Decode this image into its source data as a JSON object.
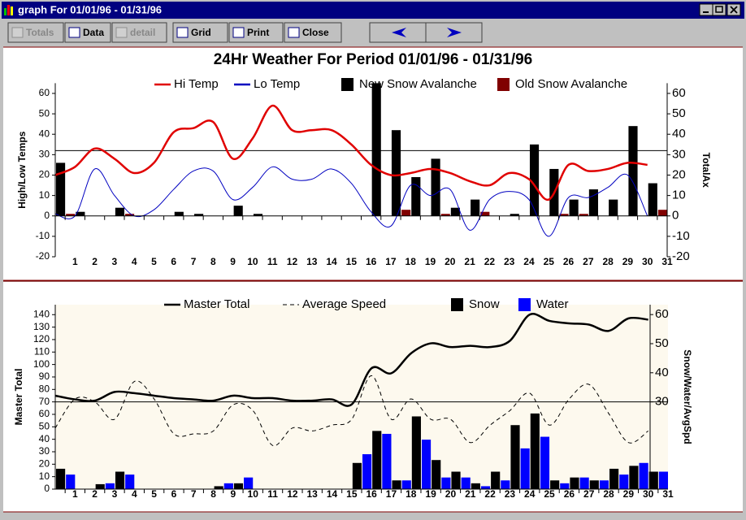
{
  "window": {
    "title": "graph For 01/01/96 - 01/31/96"
  },
  "toolbar": {
    "buttons": [
      "Totals",
      "Data",
      "detail",
      "Grid",
      "Print",
      "Close"
    ]
  },
  "chart_data": [
    {
      "type": "combo",
      "title": "24Hr Weather For Period 01/01/96 - 01/31/96",
      "y_label": "High/Low Temps",
      "y2_label": "TotalAx",
      "x": [
        0,
        1,
        2,
        3,
        4,
        5,
        6,
        7,
        8,
        9,
        10,
        11,
        12,
        13,
        14,
        15,
        16,
        17,
        18,
        19,
        20,
        21,
        22,
        23,
        24,
        25,
        26,
        27,
        28,
        29,
        30,
        31
      ],
      "xlim": [
        0,
        31
      ],
      "xticks": [
        1,
        2,
        3,
        4,
        5,
        6,
        7,
        8,
        9,
        10,
        11,
        12,
        13,
        14,
        15,
        16,
        17,
        18,
        19,
        20,
        21,
        22,
        23,
        24,
        25,
        26,
        27,
        28,
        29,
        30,
        31
      ],
      "ylim": [
        -20,
        65
      ],
      "yticks": [
        -20,
        -10,
        0,
        10,
        20,
        30,
        40,
        50,
        60
      ],
      "y2lim": [
        -20,
        65
      ],
      "y2ticks": [
        -20,
        -10,
        0,
        10,
        20,
        30,
        40,
        50,
        60
      ],
      "ref_line": 32,
      "smooth": true,
      "series": [
        {
          "name": "Hi Temp",
          "type": "line",
          "color": "#e00000",
          "values": [
            20,
            24,
            33,
            28,
            21,
            26,
            41,
            43,
            46,
            28,
            38,
            54,
            42,
            42,
            42,
            35,
            25,
            20,
            21,
            23,
            21,
            17,
            15,
            21,
            18,
            8,
            25,
            22,
            23,
            26,
            25,
            null
          ]
        },
        {
          "name": "Lo Temp",
          "type": "line",
          "color": "#0000c0",
          "values": [
            1,
            0,
            23,
            10,
            0,
            3,
            13,
            22,
            22,
            8,
            14,
            24,
            18,
            18,
            23,
            16,
            2,
            -5,
            15,
            10,
            13,
            -7,
            8,
            12,
            8,
            -10,
            9,
            9,
            14,
            20,
            0,
            null
          ]
        },
        {
          "name": "New Snow Avalanche",
          "type": "bar",
          "axis": "y2",
          "color": "#000000",
          "values": [
            26,
            2,
            0,
            4,
            0,
            0,
            2,
            1,
            0,
            5,
            1,
            0,
            0,
            0,
            0,
            0,
            65,
            42,
            19,
            28,
            4,
            8,
            0,
            1,
            35,
            23,
            8,
            13,
            8,
            44,
            16,
            0
          ]
        },
        {
          "name": "Old Snow Avalanche",
          "type": "bar",
          "axis": "y2",
          "color": "#800000",
          "values": [
            0,
            1,
            0,
            0,
            1,
            0,
            0,
            0,
            0,
            0,
            0,
            0,
            0,
            0,
            0,
            0,
            0,
            0,
            3,
            0,
            1,
            0,
            2,
            0,
            0,
            0,
            1,
            1,
            0,
            0,
            0,
            3
          ]
        }
      ]
    },
    {
      "type": "combo",
      "y_label": "Master Total",
      "y2_label": "Snow/Water/AvgSpd",
      "x": [
        0,
        1,
        2,
        3,
        4,
        5,
        6,
        7,
        8,
        9,
        10,
        11,
        12,
        13,
        14,
        15,
        16,
        17,
        18,
        19,
        20,
        21,
        22,
        23,
        24,
        25,
        26,
        27,
        28,
        29,
        30
      ],
      "xlim": [
        0,
        31
      ],
      "xticks": [
        1,
        2,
        3,
        4,
        5,
        6,
        7,
        8,
        9,
        10,
        11,
        12,
        13,
        14,
        15,
        16,
        17,
        18,
        19,
        20,
        21,
        22,
        23,
        24,
        25,
        26,
        27,
        28,
        29,
        30,
        31
      ],
      "ylim": [
        0,
        148
      ],
      "yticks": [
        0,
        10,
        20,
        30,
        40,
        50,
        60,
        70,
        80,
        90,
        100,
        110,
        120,
        130,
        140
      ],
      "y2lim": [
        0,
        63.4
      ],
      "y2ticks": [
        30,
        40,
        50,
        60
      ],
      "ref_line": 70,
      "smooth": true,
      "background": "#fdf9ee",
      "series": [
        {
          "name": "Master Total",
          "type": "line",
          "color": "#000000",
          "values": [
            75,
            72,
            71,
            78,
            77,
            75,
            73,
            72,
            71,
            75,
            73,
            73,
            71,
            71,
            72,
            68,
            97,
            93,
            109,
            117,
            114,
            115,
            114,
            119,
            140,
            135,
            133,
            132,
            127,
            137,
            136
          ]
        },
        {
          "name": "Average Speed",
          "type": "line",
          "axis": "y2",
          "color": "#000000",
          "dashed": true,
          "values": [
            21,
            31,
            30,
            24,
            37,
            31,
            19,
            19,
            20,
            29,
            27,
            15,
            21,
            20,
            22,
            24,
            39,
            24,
            31,
            24,
            24,
            16,
            22,
            27,
            33,
            22,
            31,
            36,
            26,
            16,
            20
          ]
        },
        {
          "name": "Snow",
          "type": "bar",
          "axis": "y2",
          "color": "#000000",
          "values": [
            7,
            0,
            1.7,
            6,
            0,
            0,
            0,
            0,
            1,
            2,
            0,
            0,
            0,
            0,
            0,
            9,
            20,
            3,
            25,
            10,
            6,
            2,
            6,
            22,
            26,
            3,
            4,
            3,
            7,
            8,
            6
          ]
        },
        {
          "name": "Water",
          "type": "bar",
          "axis": "y2",
          "color": "#0000ff",
          "values": [
            5,
            0,
            2,
            5,
            0,
            0,
            0,
            0,
            2,
            4,
            0,
            0,
            0,
            0,
            0,
            12,
            19,
            3,
            17,
            4,
            4,
            1,
            3,
            14,
            18,
            2,
            4,
            3,
            5,
            9,
            6
          ]
        }
      ]
    }
  ]
}
